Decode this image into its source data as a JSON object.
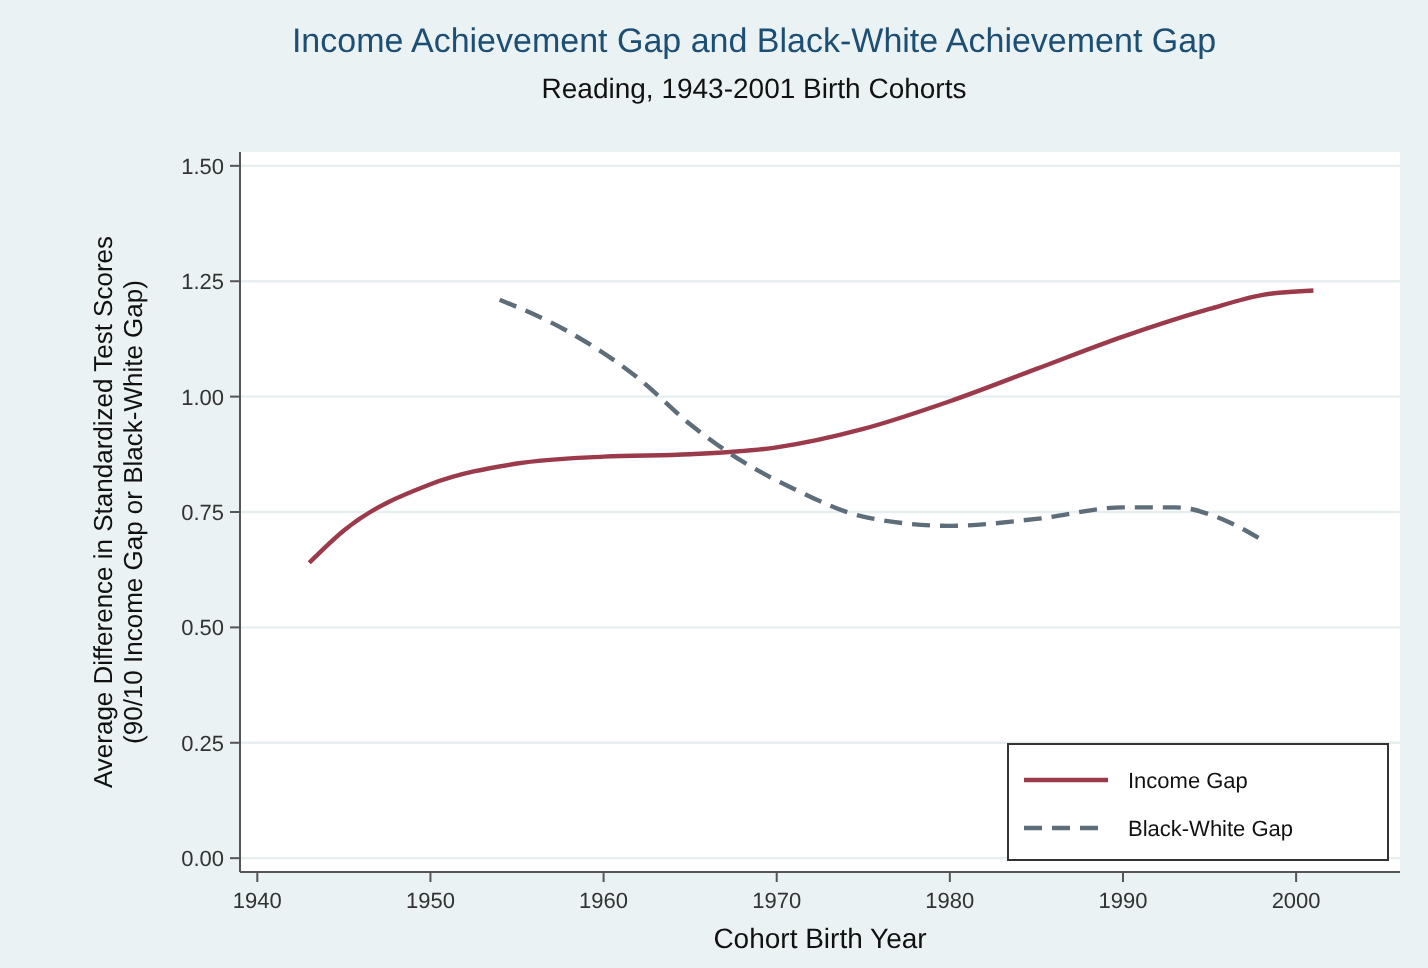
{
  "chart_data": {
    "type": "line",
    "title": "Income Achievement Gap and Black-White Achievement Gap",
    "subtitle": "Reading, 1943-2001 Birth Cohorts",
    "xlabel": "Cohort Birth Year",
    "ylabel": "Average Difference in Standardized Test Scores\n(90/10 Income Gap or Black-White Gap)",
    "xlim": [
      1939,
      2006
    ],
    "xticks": [
      1940,
      1950,
      1960,
      1970,
      1980,
      1990,
      2000
    ],
    "ylim": [
      -0.03,
      1.53
    ],
    "yticks": [
      {
        "value": 0,
        "label": "0.00"
      },
      {
        "value": 0.25,
        "label": "0.25"
      },
      {
        "value": 0.5,
        "label": "0.50"
      },
      {
        "value": 0.75,
        "label": "0.75"
      },
      {
        "value": 1,
        "label": "1.00"
      },
      {
        "value": 1.25,
        "label": "1.25"
      },
      {
        "value": 1.5,
        "label": "1.50"
      }
    ],
    "grid": "y",
    "legend": "bottom right",
    "series": [
      {
        "name": "Income Gap",
        "color": "#9b3a4a",
        "line_style": "solid",
        "x": [
          1943,
          1945,
          1950,
          1955,
          1960,
          1965,
          1970,
          1975,
          1980,
          1985,
          1990,
          1995,
          1998,
          2001
        ],
        "values": [
          0.64,
          0.71,
          0.81,
          0.855,
          0.87,
          0.875,
          0.89,
          0.93,
          0.99,
          1.06,
          1.13,
          1.19,
          1.22,
          1.23
        ]
      },
      {
        "name": "Black-White Gap",
        "color": "#5d6d7a",
        "line_style": "dashed",
        "x": [
          1954,
          1958,
          1962,
          1965,
          1968,
          1971,
          1975,
          1980,
          1985,
          1990,
          1993,
          1996,
          1998
        ],
        "values": [
          1.21,
          1.14,
          1.04,
          0.94,
          0.86,
          0.8,
          0.74,
          0.72,
          0.735,
          0.76,
          0.76,
          0.73,
          0.69
        ]
      }
    ]
  }
}
